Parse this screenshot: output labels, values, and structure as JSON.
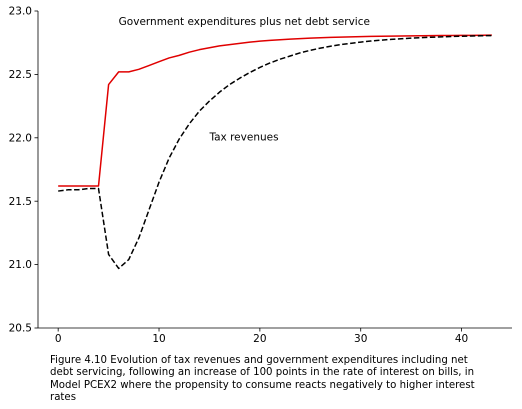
{
  "chart_data": {
    "type": "line",
    "title": "",
    "xlabel": "",
    "ylabel": "",
    "xlim": [
      -2,
      45
    ],
    "ylim": [
      20.5,
      23.0
    ],
    "xticks": [
      0,
      10,
      20,
      30,
      40
    ],
    "xtick_labels": [
      "0",
      "10",
      "20",
      "30",
      "40"
    ],
    "yticks": [
      20.5,
      21.0,
      21.5,
      22.0,
      22.5,
      23.0
    ],
    "ytick_labels": [
      "20.5",
      "21.0",
      "21.5",
      "22.0",
      "22.5",
      "23.0"
    ],
    "grid": false,
    "series": [
      {
        "name": "Government expenditures plus net debt service",
        "color": "#e00000",
        "style": "solid",
        "x": [
          0,
          1,
          2,
          3,
          4,
          5,
          6,
          7,
          8,
          9,
          10,
          11,
          12,
          13,
          14,
          15,
          16,
          17,
          18,
          19,
          20,
          21,
          22,
          23,
          24,
          25,
          26,
          27,
          28,
          29,
          30,
          31,
          32,
          33,
          34,
          35,
          36,
          37,
          38,
          39,
          40,
          41,
          42,
          43
        ],
        "y": [
          21.62,
          21.62,
          21.62,
          21.62,
          21.62,
          22.42,
          22.52,
          22.52,
          22.54,
          22.57,
          22.6,
          22.63,
          22.65,
          22.675,
          22.695,
          22.71,
          22.725,
          22.735,
          22.745,
          22.755,
          22.762,
          22.768,
          22.773,
          22.778,
          22.782,
          22.786,
          22.789,
          22.792,
          22.794,
          22.796,
          22.798,
          22.8,
          22.801,
          22.802,
          22.803,
          22.804,
          22.805,
          22.806,
          22.807,
          22.807,
          22.808,
          22.808,
          22.809,
          22.81
        ]
      },
      {
        "name": "Tax revenues",
        "color": "#000000",
        "style": "dashed",
        "x": [
          0,
          1,
          2,
          3,
          4,
          5,
          6,
          7,
          8,
          9,
          10,
          11,
          12,
          13,
          14,
          15,
          16,
          17,
          18,
          19,
          20,
          21,
          22,
          23,
          24,
          25,
          26,
          27,
          28,
          29,
          30,
          31,
          32,
          33,
          34,
          35,
          36,
          37,
          38,
          39,
          40,
          41,
          42,
          43
        ],
        "y": [
          21.58,
          21.59,
          21.59,
          21.6,
          21.6,
          21.08,
          20.97,
          21.04,
          21.21,
          21.43,
          21.65,
          21.84,
          21.99,
          22.11,
          22.21,
          22.29,
          22.36,
          22.42,
          22.47,
          22.515,
          22.555,
          22.59,
          22.62,
          22.645,
          22.67,
          22.69,
          22.707,
          22.722,
          22.735,
          22.745,
          22.755,
          22.763,
          22.77,
          22.776,
          22.781,
          22.786,
          22.79,
          22.793,
          22.796,
          22.799,
          22.801,
          22.803,
          22.805,
          22.806
        ]
      }
    ],
    "annotations": [
      {
        "text": "Government expenditures plus net debt service",
        "x": 6,
        "y": 22.89
      },
      {
        "text": "Tax revenues",
        "x": 15,
        "y": 21.98
      }
    ]
  },
  "caption": "Figure 4.10 Evolution of tax revenues and government expenditures including net debt servicing, following an increase of 100 points in the rate of interest on bills, in Model PCEX2 where the propensity to consume reacts negatively to higher interest rates"
}
